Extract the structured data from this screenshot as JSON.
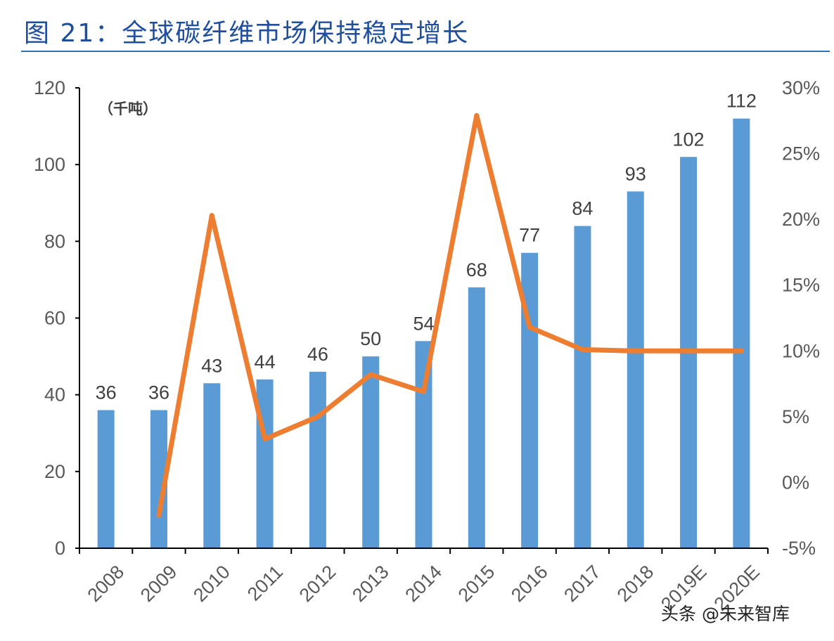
{
  "title": "图 21：全球碳纤维市场保持稳定增长",
  "chart_data": {
    "type": "bar+line",
    "title": "图 21：全球碳纤维市场保持稳定增长",
    "unit_label": "（千吨）",
    "categories": [
      "2008",
      "2009",
      "2010",
      "2011",
      "2012",
      "2013",
      "2014",
      "2015",
      "2016",
      "2017",
      "2018",
      "2019E",
      "2020E"
    ],
    "series": [
      {
        "type": "bar",
        "axis": "left",
        "color": "#5b9bd5",
        "values": [
          36,
          36,
          43,
          44,
          46,
          50,
          54,
          68,
          77,
          84,
          93,
          102,
          112
        ],
        "data_labels": [
          "36",
          "36",
          "43",
          "44",
          "46",
          "50",
          "54",
          "68",
          "77",
          "84",
          "93",
          "102",
          "112"
        ]
      },
      {
        "type": "line",
        "axis": "right",
        "color": "#ed7d31",
        "values": [
          null,
          -2.5,
          20.3,
          3.3,
          5.0,
          8.2,
          6.9,
          27.9,
          11.8,
          10.1,
          10.0,
          10.0,
          10.0
        ]
      }
    ],
    "left_axis": {
      "ylim": [
        0,
        120
      ],
      "ticks": [
        "0",
        "20",
        "40",
        "60",
        "80",
        "100",
        "120"
      ]
    },
    "right_axis": {
      "ylim": [
        -5,
        30
      ],
      "ticks": [
        "-5%",
        "0%",
        "5%",
        "10%",
        "15%",
        "20%",
        "25%",
        "30%"
      ]
    },
    "grid": false,
    "legend": "none"
  },
  "watermark": "头条 @未来智库"
}
